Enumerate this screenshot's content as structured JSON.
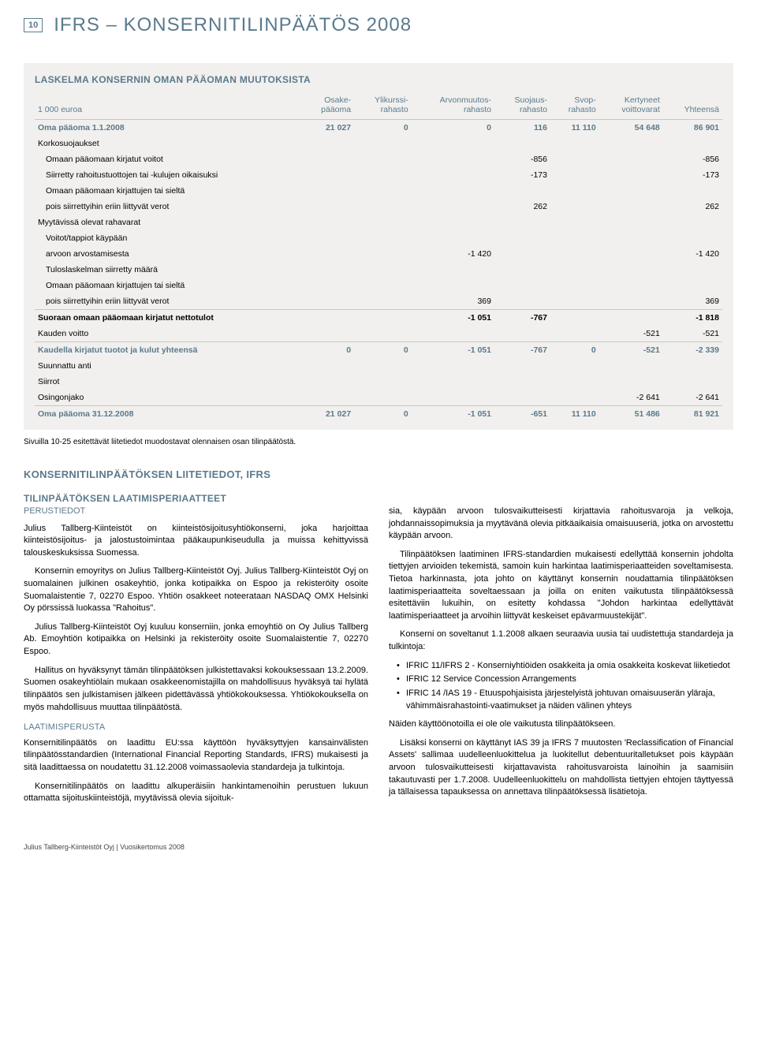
{
  "header": {
    "page_number": "10",
    "title": "IFRS – KONSERNITILINPÄÄTÖS 2008"
  },
  "table": {
    "title": "LASKELMA KONSERNIN OMAN PÄÄOMAN MUUTOKSISTA",
    "headers": [
      "1 000 euroa",
      "Osake-\npääoma",
      "Ylikurssi-\nrahasto",
      "Arvonmuutos-\nrahasto",
      "Suojaus-\nrahasto",
      "Svop-\nrahasto",
      "Kertyneet\nvoittovarat",
      "Yhteensä"
    ],
    "rows": [
      {
        "cells": [
          "Oma pääoma 1.1.2008",
          "21 027",
          "0",
          "0",
          "116",
          "11 110",
          "54 648",
          "86 901"
        ],
        "style": "bold"
      },
      {
        "cells": [
          "Korkosuojaukset",
          "",
          "",
          "",
          "",
          "",
          "",
          ""
        ],
        "style": "plain"
      },
      {
        "cells": [
          "Omaan pääomaan kirjatut voitot",
          "",
          "",
          "",
          "-856",
          "",
          "",
          "-856"
        ],
        "style": "indent"
      },
      {
        "cells": [
          "Siirretty rahoitustuottojen tai -kulujen oikaisuksi",
          "",
          "",
          "",
          "-173",
          "",
          "",
          "-173"
        ],
        "style": "indent"
      },
      {
        "cells": [
          "Omaan pääomaan kirjattujen  tai sieltä",
          "",
          "",
          "",
          "",
          "",
          "",
          ""
        ],
        "style": "indent"
      },
      {
        "cells": [
          "pois siirrettyihin eriin liittyvät verot",
          "",
          "",
          "",
          "262",
          "",
          "",
          "262"
        ],
        "style": "indent"
      },
      {
        "cells": [
          "Myytävissä olevat rahavarat",
          "",
          "",
          "",
          "",
          "",
          "",
          ""
        ],
        "style": "plain"
      },
      {
        "cells": [
          "Voitot/tappiot käypään",
          "",
          "",
          "",
          "",
          "",
          "",
          ""
        ],
        "style": "indent"
      },
      {
        "cells": [
          "arvoon arvostamisesta",
          "",
          "",
          "-1 420",
          "",
          "",
          "",
          "-1 420"
        ],
        "style": "indent"
      },
      {
        "cells": [
          "Tuloslaskelman siirretty määrä",
          "",
          "",
          "",
          "",
          "",
          "",
          ""
        ],
        "style": "indent"
      },
      {
        "cells": [
          "Omaan pääomaan kirjattujen  tai sieltä",
          "",
          "",
          "",
          "",
          "",
          "",
          ""
        ],
        "style": "indent"
      },
      {
        "cells": [
          "pois siirrettyihin eriin liittyvät verot",
          "",
          "",
          "369",
          "",
          "",
          "",
          "369"
        ],
        "style": "indent sep"
      },
      {
        "cells": [
          "Suoraan omaan pääomaan kirjatut nettotulot",
          "",
          "",
          "-1 051",
          "-767",
          "",
          "",
          "-1 818"
        ],
        "style": "rowbold"
      },
      {
        "cells": [
          "Kauden voitto",
          "",
          "",
          "",
          "",
          "",
          "-521",
          "-521"
        ],
        "style": "sep"
      },
      {
        "cells": [
          "Kaudella kirjatut tuotot ja kulut yhteensä",
          "0",
          "0",
          "-1 051",
          "-767",
          "0",
          "-521",
          "-2 339"
        ],
        "style": "bold"
      },
      {
        "cells": [
          "Suunnattu anti",
          "",
          "",
          "",
          "",
          "",
          "",
          ""
        ],
        "style": "plain"
      },
      {
        "cells": [
          "Siirrot",
          "",
          "",
          "",
          "",
          "",
          "",
          ""
        ],
        "style": "plain"
      },
      {
        "cells": [
          "Osingonjako",
          "",
          "",
          "",
          "",
          "",
          "-2 641",
          "-2 641"
        ],
        "style": "sep"
      },
      {
        "cells": [
          "Oma pääoma 31.12.2008",
          "21 027",
          "0",
          "-1 051",
          "-651",
          "11 110",
          "51 486",
          "81 921"
        ],
        "style": "bold"
      }
    ],
    "note": "Sivuilla 10-25 esitettävät liitetiedot muodostavat olennaisen osan tilinpäätöstä."
  },
  "body": {
    "section_title": "KONSERNITILINPÄÄTÖKSEN LIITETIEDOT, IFRS",
    "sub_title": "TILINPÄÄTÖKSEN LAATIMISPERIAATTEET",
    "sub_title2": "PERUSTIEDOT",
    "left": {
      "p1": "Julius Tallberg-Kiinteistöt on kiinteistösijoitusyhtiökonserni, joka harjoittaa kiinteistösijoitus- ja jalostustoimintaa pääkaupunkiseudulla ja muissa kehittyvissä talouskeskuksissa Suomessa.",
      "p2": "Konsernin emoyritys on Julius Tallberg-Kiinteistöt Oyj. Julius Tallberg-Kiinteistöt Oyj on suomalainen julkinen osakeyhtiö, jonka kotipaikka on Espoo ja rekisteröity osoite Suomalaistentie 7, 02270 Espoo. Yhtiön osakkeet noteerataan NASDAQ OMX Helsinki Oy pörssissä luokassa \"Rahoitus\".",
      "p3": "Julius Tallberg-Kiinteistöt Oyj kuuluu konserniin, jonka emoyhtiö on Oy Julius Tallberg Ab. Emoyhtiön kotipaikka on Helsinki ja rekisteröity osoite Suomalaistentie 7, 02270 Espoo.",
      "p4": "Hallitus on hyväksynyt tämän tilinpäätöksen julkistettavaksi kokouksessaan 13.2.2009. Suomen osakeyhtiölain mukaan osakkeenomistajilla on mahdollisuus hyväksyä tai hylätä tilinpäätös sen julkistamisen jälkeen pidettävässä yhtiökokouksessa. Yhtiökokouksella on myös mahdollisuus muuttaa tilinpäätöstä.",
      "h2": "LAATIMISPERUSTA",
      "p5": "Konsernitilinpäätös on laadittu EU:ssa käyttöön hyväksyttyjen kansainvälisten tilinpäätösstandardien (International Financial Reporting Standards, IFRS) mukaisesti ja sitä laadittaessa on noudatettu 31.12.2008 voimassaolevia standardeja ja tulkintoja.",
      "p6": "Konsernitilinpäätös on laadittu alkuperäisiin hankintamenoihin perustuen lukuun ottamatta sijoituskiinteistöjä, myytävissä olevia sijoituk-"
    },
    "right": {
      "p1": "sia, käypään arvoon tulosvaikutteisesti kirjattavia rahoitusvaroja ja velkoja, johdannaissopimuksia ja myytävänä olevia pitkäaikaisia omaisuuseriä, jotka on arvostettu käypään arvoon.",
      "p2": "Tilinpäätöksen laatiminen IFRS-standardien mukaisesti edellyttää konsernin johdolta tiettyjen arvioiden tekemistä, samoin kuin harkintaa laatimisperiaatteiden soveltamisesta. Tietoa harkinnasta, jota johto on käyttänyt konsernin noudattamia tilinpäätöksen laatimisperiaatteita soveltaessaan ja joilla on eniten vaikutusta tilinpäätöksessä esitettäviin lukuihin, on esitetty kohdassa \"Johdon harkintaa edellyttävät laatimisperiaatteet ja arvoihin liittyvät keskeiset epävarmuustekijät\".",
      "p3": "Konserni on soveltanut 1.1.2008 alkaen seuraavia uusia tai uudistettuja standardeja ja tulkintoja:",
      "li1": "IFRIC 11/IFRS 2 - Konserniyhtiöiden osakkeita ja omia osakkeita koskevat liiketiedot",
      "li2": "IFRIC 12 Service Concession Arrangements",
      "li3": "IFRIC 14 /IAS 19 - Etuuspohjaisista järjestelyistä johtuvan omaisuuserän yläraja, vähimmäisrahastointi-vaatimukset ja näiden välinen yhteys",
      "p4": "Näiden käyttöönotoilla ei ole ole vaikutusta tilinpäätökseen.",
      "p5": "Lisäksi konserni on käyttänyt IAS 39 ja IFRS 7 muutosten 'Reclassification of Financial Assets' sallimaa uudelleenluokittelua ja luokitellut debentuuritalletukset pois käypään arvoon tulosvaikutteisesti kirjattavavista rahoitusvaroista lainoihin ja saamisiin takautuvasti per 1.7.2008. Uudelleenluokittelu on mahdollista tiettyjen ehtojen täyttyessä ja tällaisessa tapauksessa on annettava tilinpäätöksessä lisätietoja."
    }
  },
  "footer": "Julius Tallberg-Kiinteistöt Oyj | Vuosikertomus 2008"
}
